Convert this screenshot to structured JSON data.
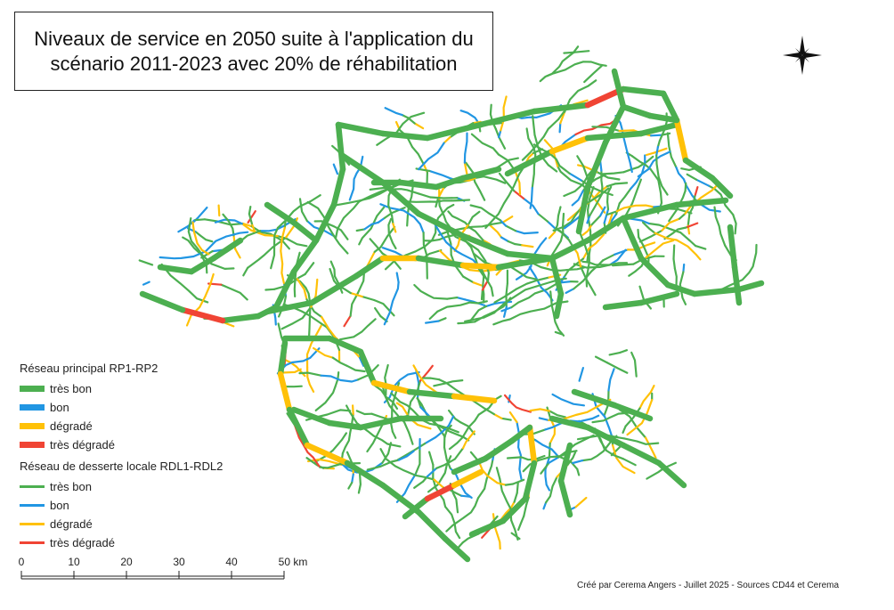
{
  "title": {
    "line1": "Niveaux de service en 2050 suite à l'application du",
    "line2": "scénario 2011-2023 avec 20% de réhabilitation"
  },
  "north_arrow": {
    "icon": "north-arrow-icon"
  },
  "colors": {
    "tres_bon": "#4caf50",
    "bon": "#2196e3",
    "degrade": "#ffc107",
    "tres_degrade": "#f04434"
  },
  "legend": {
    "main_title": "Réseau principal RP1-RP2",
    "main_items": [
      {
        "label": "très bon",
        "color": "#4caf50"
      },
      {
        "label": "bon",
        "color": "#2196e3"
      },
      {
        "label": "dégradé",
        "color": "#ffc107"
      },
      {
        "label": "très dégradé",
        "color": "#f04434"
      }
    ],
    "local_title": "Réseau de desserte locale RDL1-RDL2",
    "local_items": [
      {
        "label": "très bon",
        "color": "#4caf50"
      },
      {
        "label": "bon",
        "color": "#2196e3"
      },
      {
        "label": "dégradé",
        "color": "#ffc107"
      },
      {
        "label": "très dégradé",
        "color": "#f04434"
      }
    ]
  },
  "scale_bar": {
    "labels": [
      "0",
      "10",
      "20",
      "30",
      "40",
      "50 km"
    ]
  },
  "credit": "Créé par Cerema Angers - Juillet 2025 - Sources CD44 et Cerema"
}
